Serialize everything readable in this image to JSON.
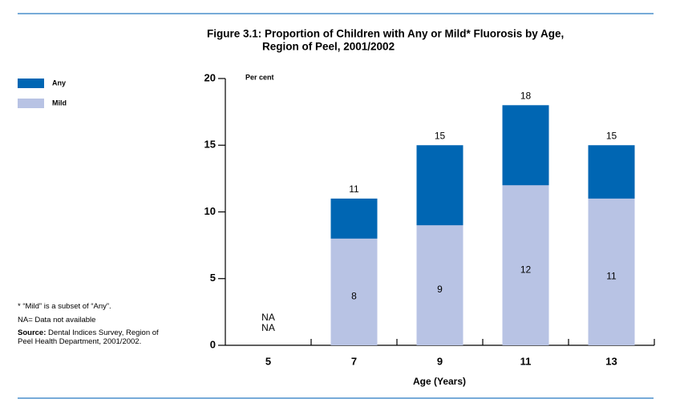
{
  "chart_data": {
    "type": "bar",
    "title": [
      "Figure 3.1: Proportion of Children with Any or Mild* Fluorosis by Age,",
      "Region of Peel, 2001/2002"
    ],
    "y_label": "Per cent",
    "x_label": "Age (Years)",
    "categories": [
      "5",
      "7",
      "9",
      "11",
      "13"
    ],
    "series": [
      {
        "name": "Any",
        "color": "#0066b3",
        "label_color": "#0066b3",
        "values": [
          null,
          11,
          15,
          18,
          15
        ],
        "value_labels": [
          "NA",
          null,
          null,
          null,
          null
        ]
      },
      {
        "name": "Mild",
        "color": "#b8c3e4",
        "label_color": "#0066b3",
        "values": [
          null,
          8,
          9,
          12,
          11
        ],
        "value_labels": [
          "NA",
          null,
          null,
          null,
          null
        ]
      }
    ],
    "ylim": [
      0,
      20
    ],
    "yticks": [
      0,
      5,
      10,
      15,
      20
    ],
    "notes": [
      "* “Mild” is a subset of “Any”.",
      "NA= Data not available"
    ],
    "source_label": "Source:",
    "source": "Dental Indices Survey, Region of Peel Health Department, 2001/2002."
  }
}
